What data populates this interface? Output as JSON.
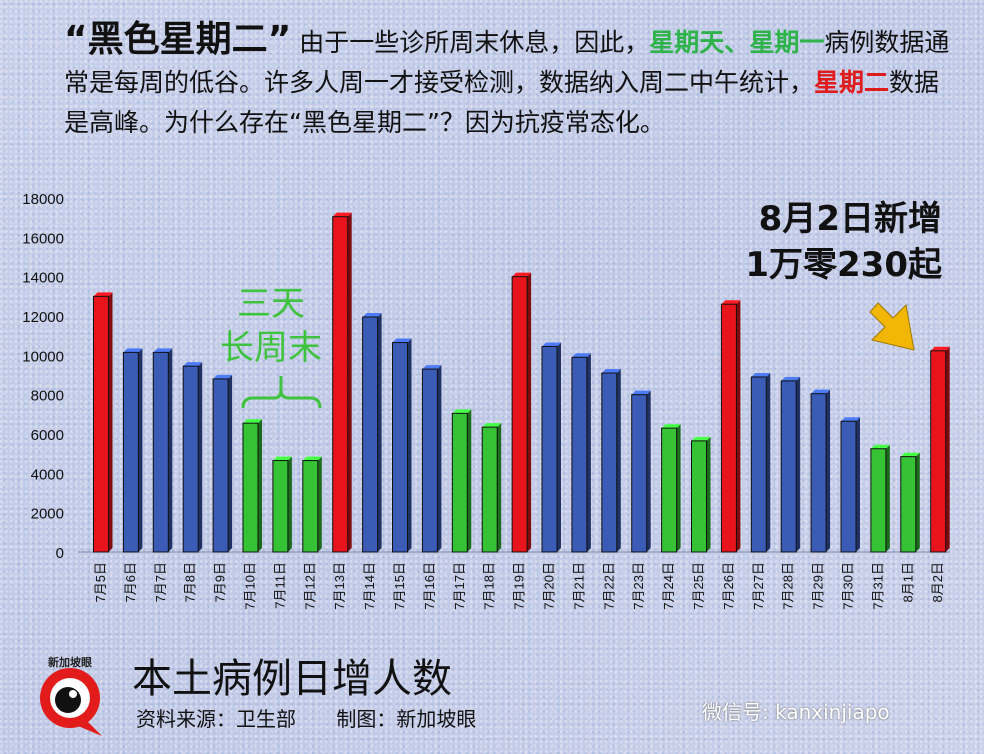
{
  "header": {
    "title": "“黑色星期二”",
    "seg1": "由于一些诊所周末休息，因此，",
    "green1": "星期天、",
    "green2": "星期一",
    "seg2": "病例数据通常是每周的低谷。许多人周一才接受检测，数据纳入周二中午统计，",
    "red1": "星期二",
    "seg3": "数据是高峰。为什么存在“黑色星期二”？因为抗疫常态化。"
  },
  "annotations": {
    "callout_line1": "8月2日新增",
    "callout_line2": "1万零230起",
    "long_weekend_line1": "三天",
    "long_weekend_line2": "长周末"
  },
  "footer": {
    "title": "本土病例日增人数",
    "source": "资料来源：卫生部",
    "credit": "制图：新加坡眼",
    "watermark": "微信号: kanxinjiapo",
    "logo_text": "新加坡眼"
  },
  "colors": {
    "red": "#e8141b",
    "blue": "#3a5bb6",
    "green": "#35c235",
    "arrow": "#f2b705"
  },
  "chart_data": {
    "type": "bar",
    "title": "本土病例日增人数",
    "xlabel": "",
    "ylabel": "",
    "ylim": [
      0,
      18000
    ],
    "yticks": [
      0,
      2000,
      4000,
      6000,
      8000,
      10000,
      12000,
      14000,
      16000,
      18000
    ],
    "grid": false,
    "categories": [
      "7月5日",
      "7月6日",
      "7月7日",
      "7月8日",
      "7月9日",
      "7月10日",
      "7月11日",
      "7月12日",
      "7月13日",
      "7月14日",
      "7月15日",
      "7月16日",
      "7月17日",
      "7月18日",
      "7月19日",
      "7月20日",
      "7月21日",
      "7月22日",
      "7月23日",
      "7月24日",
      "7月25日",
      "7月26日",
      "7月27日",
      "7月28日",
      "7月29日",
      "7月30日",
      "7月31日",
      "8月1日",
      "8月2日"
    ],
    "values": [
      13000,
      10150,
      10150,
      9450,
      8800,
      6550,
      4650,
      4650,
      17050,
      11950,
      10650,
      9300,
      7050,
      6350,
      14000,
      10450,
      9900,
      9100,
      8000,
      6300,
      5650,
      12600,
      8900,
      8700,
      8050,
      6650,
      5250,
      4850,
      10230
    ],
    "bar_colors": [
      "red",
      "blue",
      "blue",
      "blue",
      "blue",
      "green",
      "green",
      "green",
      "red",
      "blue",
      "blue",
      "blue",
      "green",
      "green",
      "red",
      "blue",
      "blue",
      "blue",
      "blue",
      "green",
      "green",
      "red",
      "blue",
      "blue",
      "blue",
      "blue",
      "green",
      "green",
      "red"
    ]
  }
}
